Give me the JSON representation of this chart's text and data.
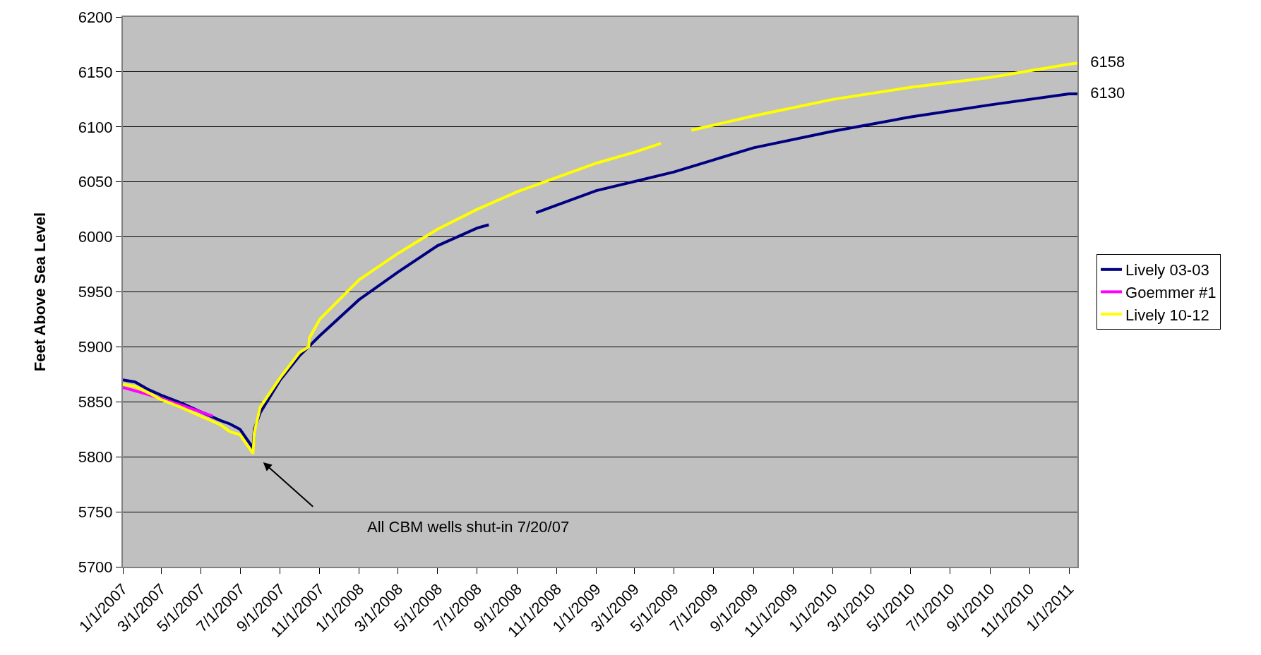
{
  "chart_data": {
    "type": "line",
    "ylabel": "Feet Above Sea Level",
    "ylim": [
      5700,
      6200
    ],
    "yticks": [
      5700,
      5750,
      5800,
      5850,
      5900,
      5950,
      6000,
      6050,
      6100,
      6150,
      6200
    ],
    "xlim": [
      "2007-01-01",
      "2011-01-14"
    ],
    "xticks": [
      {
        "value": "2007-01-01",
        "label": "1/1/2007"
      },
      {
        "value": "2007-03-01",
        "label": "3/1/2007"
      },
      {
        "value": "2007-05-01",
        "label": "5/1/2007"
      },
      {
        "value": "2007-07-01",
        "label": "7/1/2007"
      },
      {
        "value": "2007-09-01",
        "label": "9/1/2007"
      },
      {
        "value": "2007-11-01",
        "label": "11/1/2007"
      },
      {
        "value": "2008-01-01",
        "label": "1/1/2008"
      },
      {
        "value": "2008-03-01",
        "label": "3/1/2008"
      },
      {
        "value": "2008-05-01",
        "label": "5/1/2008"
      },
      {
        "value": "2008-07-01",
        "label": "7/1/2008"
      },
      {
        "value": "2008-09-01",
        "label": "9/1/2008"
      },
      {
        "value": "2008-11-01",
        "label": "11/1/2008"
      },
      {
        "value": "2009-01-01",
        "label": "1/1/2009"
      },
      {
        "value": "2009-03-01",
        "label": "3/1/2009"
      },
      {
        "value": "2009-05-01",
        "label": "5/1/2009"
      },
      {
        "value": "2009-07-01",
        "label": "7/1/2009"
      },
      {
        "value": "2009-09-01",
        "label": "9/1/2009"
      },
      {
        "value": "2009-11-01",
        "label": "11/1/2009"
      },
      {
        "value": "2010-01-01",
        "label": "1/1/2010"
      },
      {
        "value": "2010-03-01",
        "label": "3/1/2010"
      },
      {
        "value": "2010-05-01",
        "label": "5/1/2010"
      },
      {
        "value": "2010-07-01",
        "label": "7/1/2010"
      },
      {
        "value": "2010-09-01",
        "label": "9/1/2010"
      },
      {
        "value": "2010-11-01",
        "label": "11/1/2010"
      },
      {
        "value": "2011-01-01",
        "label": "1/1/2011"
      }
    ],
    "grid": "y",
    "legend": "right",
    "series": [
      {
        "name": "Lively 03-03",
        "color": "#000080",
        "x": [
          "2007-01-01",
          "2007-01-20",
          "2007-02-10",
          "2007-03-01",
          "2007-04-01",
          "2007-05-01",
          "2007-06-01",
          "2007-06-15",
          "2007-07-01",
          "2007-07-21",
          "2007-07-23",
          "2007-08-01",
          "2007-09-01",
          "2007-10-01",
          "2007-11-01",
          "2008-01-01",
          "2008-03-01",
          "2008-05-01",
          "2008-07-01",
          "2008-07-19",
          "2008-08-15",
          "2008-09-30",
          "2009-01-01",
          "2009-05-01",
          "2009-07-01",
          "2009-09-01",
          "2010-01-01",
          "2010-05-01",
          "2010-09-01",
          "2011-01-01",
          "2011-01-14"
        ],
        "values": [
          5870,
          5868,
          5861,
          5856,
          5849,
          5841,
          5833,
          5830,
          5825,
          5808,
          5825,
          5840,
          5870,
          5892,
          5910,
          5943,
          5968,
          5992,
          6008,
          6011,
          null,
          6022,
          6042,
          6059,
          6070,
          6081,
          6096,
          6109,
          6120,
          6130,
          6130
        ],
        "value_labels": [
          null,
          null,
          null,
          null,
          null,
          null,
          null,
          null,
          null,
          null,
          null,
          null,
          null,
          null,
          null,
          null,
          null,
          null,
          null,
          null,
          null,
          null,
          null,
          null,
          null,
          null,
          null,
          null,
          null,
          null,
          "6130"
        ]
      },
      {
        "name": "Goemmer #1",
        "color": "#ff00ff",
        "x": [
          "2007-01-01",
          "2007-02-01",
          "2007-03-01",
          "2007-04-01",
          "2007-05-01",
          "2007-05-20"
        ],
        "values": [
          5863,
          5858,
          5853,
          5847,
          5841,
          5837
        ]
      },
      {
        "name": "Lively 10-12",
        "color": "#ffff00",
        "x": [
          "2007-01-01",
          "2007-01-20",
          "2007-02-10",
          "2007-03-01",
          "2007-04-01",
          "2007-05-01",
          "2007-06-01",
          "2007-06-15",
          "2007-07-01",
          "2007-07-21",
          "2007-07-23",
          "2007-08-01",
          "2007-09-01",
          "2007-10-01",
          "2007-10-15",
          "2007-10-16",
          "2007-11-01",
          "2008-01-01",
          "2008-03-01",
          "2008-05-01",
          "2008-07-01",
          "2008-09-01",
          "2008-11-01",
          "2009-01-01",
          "2009-03-01",
          "2009-04-11",
          "2009-05-10",
          "2009-05-28",
          "2009-09-01",
          "2010-01-01",
          "2010-05-01",
          "2010-09-01",
          "2011-01-01",
          "2011-01-14"
        ],
        "values": [
          5866,
          5864,
          5858,
          5852,
          5845,
          5837,
          5829,
          5823,
          5820,
          5803,
          5822,
          5845,
          5872,
          5895,
          5900,
          5908,
          5925,
          5961,
          5985,
          6007,
          6025,
          6041,
          6054,
          6067,
          6077,
          6085,
          null,
          6097,
          6110,
          6125,
          6136,
          6145,
          6157,
          6158
        ],
        "value_labels": [
          null,
          null,
          null,
          null,
          null,
          null,
          null,
          null,
          null,
          null,
          null,
          null,
          null,
          null,
          null,
          null,
          null,
          null,
          null,
          null,
          null,
          null,
          null,
          null,
          null,
          null,
          null,
          null,
          null,
          null,
          null,
          null,
          null,
          "6158"
        ]
      }
    ],
    "annotations": [
      "All CBM wells shut-in 7/20/07"
    ]
  }
}
